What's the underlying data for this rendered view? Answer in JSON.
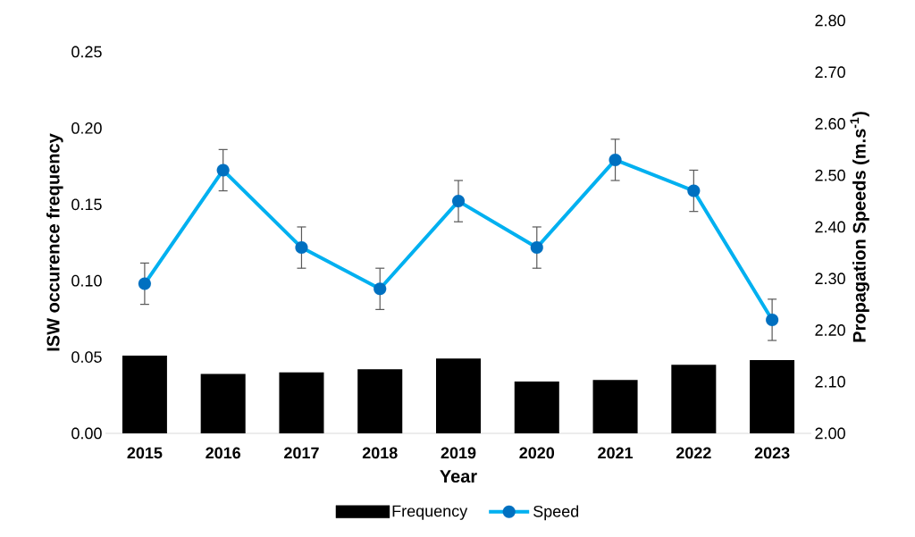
{
  "chart_data": {
    "type": "bar",
    "xlabel": "Year",
    "ylabel": "ISW occurence frequency",
    "y2label": "Propagation Speeds (m.s$^{-1}$)",
    "categories": [
      "2015",
      "2016",
      "2017",
      "2018",
      "2019",
      "2020",
      "2021",
      "2022",
      "2023"
    ],
    "series": [
      {
        "name": "Frequency",
        "color": "#000000",
        "values": [
          0.051,
          0.039,
          0.04,
          0.042,
          0.049,
          0.034,
          0.035,
          0.045,
          0.048
        ]
      },
      {
        "name": "Speed",
        "type": "line",
        "axis": "y2",
        "color": "#00b0f0",
        "marker": "circle",
        "values": [
          2.29,
          2.51,
          2.36,
          2.28,
          2.45,
          2.36,
          2.53,
          2.47,
          2.22
        ],
        "errors": [
          0.04,
          0.04,
          0.04,
          0.04,
          0.04,
          0.04,
          0.04,
          0.04,
          0.04
        ]
      }
    ],
    "ylim": [
      0,
      0.25
    ],
    "yticks": [
      {
        "value": 0,
        "label": "0.00"
      },
      {
        "value": 0.05,
        "label": "0.05"
      },
      {
        "value": 0.1,
        "label": "0.10"
      },
      {
        "value": 0.15,
        "label": "0.15"
      },
      {
        "value": 0.2,
        "label": "0.20"
      },
      {
        "value": 0.25,
        "label": "0.25"
      }
    ],
    "y2lim": [
      2.0,
      2.8
    ],
    "y2ticks": [
      {
        "value": 2.0,
        "label": "2.00"
      },
      {
        "value": 2.1,
        "label": "2.10"
      },
      {
        "value": 2.2,
        "label": "2.20"
      },
      {
        "value": 2.3,
        "label": "2.30"
      },
      {
        "value": 2.4,
        "label": "2.40"
      },
      {
        "value": 2.5,
        "label": "2.50"
      },
      {
        "value": 2.6,
        "label": "2.60"
      },
      {
        "value": 2.7,
        "label": "2.70"
      },
      {
        "value": 2.8,
        "label": "2.80"
      }
    ],
    "legend": "bottom"
  }
}
